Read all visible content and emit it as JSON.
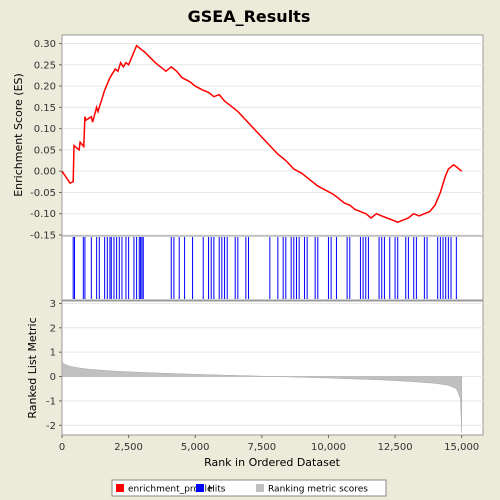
{
  "chart_data": [
    {
      "type": "line",
      "title": "GSEA_Results",
      "ylabel": "Enrichment Score (ES)",
      "xlim": [
        0,
        15800
      ],
      "ylim": [
        -0.15,
        0.32
      ],
      "yticks": [
        "0.30",
        "0.25",
        "0.20",
        "0.15",
        "0.10",
        "0.05",
        "0.00",
        "-0.05",
        "-0.10",
        "-0.15"
      ],
      "ytick_values": [
        0.3,
        0.25,
        0.2,
        0.15,
        0.1,
        0.05,
        0.0,
        -0.05,
        -0.1,
        -0.15
      ],
      "grid": true,
      "series": [
        {
          "name": "enrichment_profile",
          "color": "#ff0000",
          "x": [
            0,
            300,
            420,
            450,
            640,
            680,
            820,
            860,
            900,
            1100,
            1150,
            1300,
            1350,
            1400,
            1500,
            1600,
            1700,
            1800,
            1900,
            2000,
            2100,
            2200,
            2300,
            2400,
            2500,
            2600,
            2700,
            2800,
            2900,
            3000,
            3100,
            3500,
            3900,
            4100,
            4200,
            4300,
            4500,
            4800,
            5000,
            5300,
            5500,
            5700,
            5900,
            6100,
            6300,
            6600,
            6900,
            7200,
            7500,
            7800,
            8100,
            8400,
            8700,
            9000,
            9300,
            9600,
            9900,
            10200,
            10400,
            10600,
            10800,
            11000,
            11200,
            11400,
            11600,
            11800,
            12000,
            12200,
            12400,
            12600,
            12800,
            13000,
            13200,
            13400,
            13600,
            13800,
            14000,
            14100,
            14200,
            14300,
            14400,
            14500,
            14600,
            14700,
            14800,
            15000
          ],
          "y": [
            0.0,
            -0.028,
            -0.025,
            0.06,
            0.05,
            0.068,
            0.058,
            0.128,
            0.12,
            0.128,
            0.115,
            0.15,
            0.14,
            0.15,
            0.17,
            0.19,
            0.205,
            0.22,
            0.23,
            0.24,
            0.235,
            0.255,
            0.245,
            0.255,
            0.25,
            0.265,
            0.28,
            0.295,
            0.29,
            0.285,
            0.28,
            0.255,
            0.235,
            0.245,
            0.24,
            0.235,
            0.22,
            0.21,
            0.2,
            0.19,
            0.185,
            0.175,
            0.18,
            0.165,
            0.155,
            0.14,
            0.12,
            0.1,
            0.08,
            0.06,
            0.04,
            0.025,
            0.005,
            -0.005,
            -0.02,
            -0.035,
            -0.045,
            -0.055,
            -0.065,
            -0.075,
            -0.08,
            -0.09,
            -0.095,
            -0.1,
            -0.11,
            -0.1,
            -0.105,
            -0.11,
            -0.115,
            -0.12,
            -0.115,
            -0.11,
            -0.1,
            -0.105,
            -0.1,
            -0.095,
            -0.08,
            -0.065,
            -0.05,
            -0.03,
            -0.01,
            0.005,
            0.01,
            0.015,
            0.01,
            0.0
          ]
        }
      ]
    },
    {
      "type": "scatter",
      "series": [
        {
          "name": "Hits",
          "color": "#0000ff",
          "x": [
            420,
            470,
            800,
            860,
            1100,
            1300,
            1400,
            1600,
            1700,
            1800,
            1850,
            1950,
            2050,
            2150,
            2250,
            2400,
            2500,
            2700,
            2800,
            2900,
            2950,
            3000,
            3050,
            4100,
            4200,
            4400,
            4600,
            4900,
            5300,
            5500,
            5600,
            5700,
            5900,
            6000,
            6100,
            6200,
            6500,
            6600,
            6900,
            7000,
            7800,
            8100,
            8300,
            8400,
            8600,
            8700,
            8800,
            8900,
            9100,
            9200,
            9500,
            9600,
            10000,
            10100,
            10300,
            10700,
            10800,
            11200,
            11300,
            11400,
            11500,
            11900,
            12000,
            12100,
            12300,
            12500,
            12600,
            12900,
            13000,
            13200,
            13300,
            13600,
            13700,
            14100,
            14200,
            14300,
            14400,
            14500,
            14600,
            14800
          ]
        }
      ]
    },
    {
      "type": "area",
      "ylabel": "Ranked List Metric",
      "xlabel": "Rank in Ordered Dataset",
      "xlim": [
        0,
        15800
      ],
      "ylim": [
        -2.4,
        3.1
      ],
      "xticks": [
        "0",
        "2,500",
        "5,000",
        "7,500",
        "10,000",
        "12,500",
        "15,000"
      ],
      "xtick_values": [
        0,
        2500,
        5000,
        7500,
        10000,
        12500,
        15000
      ],
      "yticks": [
        "3",
        "2",
        "1",
        "0",
        "-1",
        "-2"
      ],
      "ytick_values": [
        3,
        2,
        1,
        0,
        -1,
        -2
      ],
      "series": [
        {
          "name": "Ranking metric scores",
          "color": "#c0c0c0",
          "x": [
            0,
            100,
            300,
            600,
            1000,
            2000,
            3000,
            4000,
            5000,
            6000,
            7000,
            8000,
            9000,
            10000,
            11000,
            12000,
            13000,
            14000,
            14500,
            14800,
            14950,
            15000
          ],
          "y": [
            0.62,
            0.5,
            0.42,
            0.36,
            0.3,
            0.22,
            0.17,
            0.13,
            0.09,
            0.06,
            0.03,
            0.0,
            -0.03,
            -0.06,
            -0.1,
            -0.14,
            -0.2,
            -0.28,
            -0.36,
            -0.5,
            -0.9,
            -2.3
          ]
        }
      ]
    }
  ],
  "legend": [
    {
      "label": "enrichment_profile",
      "color": "#ff0000"
    },
    {
      "label": "Hits",
      "color": "#0000ff"
    },
    {
      "label": "Ranking metric scores",
      "color": "#c0c0c0"
    }
  ]
}
